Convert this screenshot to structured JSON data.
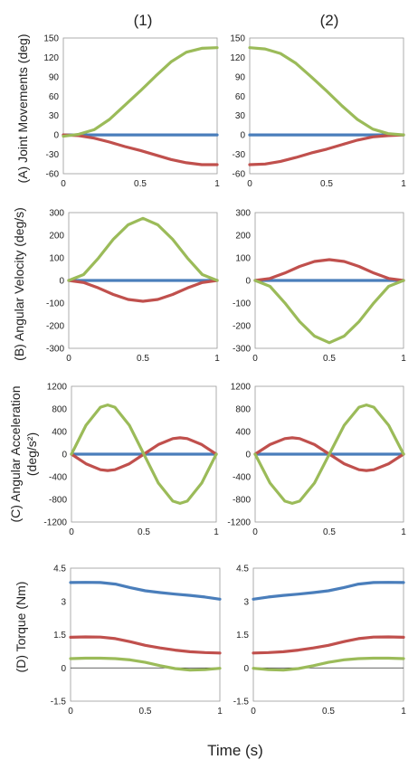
{
  "figure": {
    "column_titles": [
      "(1)",
      "(2)"
    ],
    "x_axis_title": "Time (s)",
    "row_labels": [
      [
        "(A) Joint Movements (deg)"
      ],
      [
        "(B) Angular Velocity (deg/s)"
      ],
      [
        "(C) Angular Acceleration",
        "(deg/s²)"
      ],
      [
        "(D) Torque (Nm)"
      ]
    ],
    "series_colors": [
      "#4a7ebb",
      "#c0504d",
      "#9bbb59"
    ]
  },
  "chart_data": [
    {
      "type": "line",
      "id": "A1",
      "xlim": [
        0,
        1
      ],
      "ylim": [
        -60,
        150
      ],
      "xticks": [
        0,
        0.5,
        1
      ],
      "yticks": [
        -60,
        -30,
        0,
        30,
        60,
        90,
        120,
        150
      ],
      "x": [
        0,
        0.1,
        0.2,
        0.3,
        0.4,
        0.5,
        0.6,
        0.7,
        0.8,
        0.9,
        1.0
      ],
      "series": [
        {
          "color": "#4a7ebb",
          "values": [
            0,
            0,
            0,
            0,
            0,
            0,
            0,
            0,
            0,
            0,
            0
          ]
        },
        {
          "color": "#c0504d",
          "values": [
            0,
            -1,
            -5,
            -11,
            -18,
            -24,
            -31,
            -38,
            -43,
            -46,
            -46
          ]
        },
        {
          "color": "#9bbb59",
          "values": [
            -2,
            1,
            8,
            24,
            46,
            68,
            91,
            113,
            128,
            134,
            135
          ]
        }
      ]
    },
    {
      "type": "line",
      "id": "A2",
      "xlim": [
        0,
        1
      ],
      "ylim": [
        -60,
        150
      ],
      "xticks": [
        0,
        0.5,
        1
      ],
      "yticks": [
        -60,
        -30,
        0,
        30,
        60,
        90,
        120,
        150
      ],
      "x": [
        0,
        0.1,
        0.2,
        0.3,
        0.4,
        0.5,
        0.6,
        0.7,
        0.8,
        0.9,
        1.0
      ],
      "series": [
        {
          "color": "#4a7ebb",
          "values": [
            0,
            0,
            0,
            0,
            0,
            0,
            0,
            0,
            0,
            0,
            0
          ]
        },
        {
          "color": "#c0504d",
          "values": [
            -46,
            -45,
            -41,
            -35,
            -28,
            -22,
            -15,
            -8,
            -3,
            -1,
            0
          ]
        },
        {
          "color": "#9bbb59",
          "values": [
            135,
            133,
            126,
            111,
            90,
            68,
            45,
            24,
            9,
            2,
            0
          ]
        }
      ]
    },
    {
      "type": "line",
      "id": "B1",
      "xlim": [
        0,
        1
      ],
      "ylim": [
        -300,
        300
      ],
      "xticks": [
        0,
        0.5,
        1
      ],
      "yticks": [
        -300,
        -200,
        -100,
        0,
        100,
        200,
        300
      ],
      "x": [
        0,
        0.1,
        0.2,
        0.3,
        0.4,
        0.5,
        0.6,
        0.7,
        0.8,
        0.9,
        1.0
      ],
      "series": [
        {
          "color": "#4a7ebb",
          "values": [
            0,
            0,
            0,
            0,
            0,
            0,
            0,
            0,
            0,
            0,
            0
          ]
        },
        {
          "color": "#c0504d",
          "values": [
            0,
            -9,
            -33,
            -62,
            -84,
            -92,
            -84,
            -62,
            -33,
            -9,
            0
          ]
        },
        {
          "color": "#9bbb59",
          "values": [
            0,
            26,
            99,
            182,
            246,
            275,
            246,
            182,
            99,
            26,
            0
          ]
        }
      ]
    },
    {
      "type": "line",
      "id": "B2",
      "xlim": [
        0,
        1
      ],
      "ylim": [
        -300,
        300
      ],
      "xticks": [
        0,
        0.5,
        1
      ],
      "yticks": [
        -300,
        -200,
        -100,
        0,
        100,
        200,
        300
      ],
      "x": [
        0,
        0.1,
        0.2,
        0.3,
        0.4,
        0.5,
        0.6,
        0.7,
        0.8,
        0.9,
        1.0
      ],
      "series": [
        {
          "color": "#4a7ebb",
          "values": [
            0,
            0,
            0,
            0,
            0,
            0,
            0,
            0,
            0,
            0,
            0
          ]
        },
        {
          "color": "#c0504d",
          "values": [
            0,
            9,
            33,
            62,
            84,
            92,
            84,
            62,
            33,
            9,
            0
          ]
        },
        {
          "color": "#9bbb59",
          "values": [
            0,
            -26,
            -99,
            -182,
            -246,
            -275,
            -246,
            -182,
            -99,
            -26,
            0
          ]
        }
      ]
    },
    {
      "type": "line",
      "id": "C1",
      "xlim": [
        0,
        1
      ],
      "ylim": [
        -1200,
        1200
      ],
      "xticks": [
        0,
        0.5,
        1
      ],
      "yticks": [
        -1200,
        -800,
        -400,
        0,
        400,
        800,
        1200
      ],
      "x": [
        0,
        0.1,
        0.2,
        0.25,
        0.3,
        0.4,
        0.5,
        0.6,
        0.7,
        0.75,
        0.8,
        0.9,
        1.0
      ],
      "series": [
        {
          "color": "#4a7ebb",
          "values": [
            0,
            0,
            0,
            0,
            0,
            0,
            0,
            0,
            0,
            0,
            0,
            0,
            0
          ]
        },
        {
          "color": "#c0504d",
          "values": [
            0,
            -170,
            -275,
            -290,
            -275,
            -170,
            0,
            170,
            275,
            290,
            275,
            170,
            0
          ]
        },
        {
          "color": "#9bbb59",
          "values": [
            0,
            510,
            830,
            870,
            830,
            510,
            0,
            -510,
            -830,
            -870,
            -830,
            -510,
            0
          ]
        }
      ]
    },
    {
      "type": "line",
      "id": "C2",
      "xlim": [
        0,
        1
      ],
      "ylim": [
        -1200,
        1200
      ],
      "xticks": [
        0,
        0.5,
        1
      ],
      "yticks": [
        -1200,
        -800,
        -400,
        0,
        400,
        800,
        1200
      ],
      "x": [
        0,
        0.1,
        0.2,
        0.25,
        0.3,
        0.4,
        0.5,
        0.6,
        0.7,
        0.75,
        0.8,
        0.9,
        1.0
      ],
      "series": [
        {
          "color": "#4a7ebb",
          "values": [
            0,
            0,
            0,
            0,
            0,
            0,
            0,
            0,
            0,
            0,
            0,
            0,
            0
          ]
        },
        {
          "color": "#c0504d",
          "values": [
            0,
            170,
            275,
            290,
            275,
            170,
            0,
            -170,
            -275,
            -290,
            -275,
            -170,
            0
          ]
        },
        {
          "color": "#9bbb59",
          "values": [
            0,
            -510,
            -830,
            -870,
            -830,
            -510,
            0,
            510,
            830,
            870,
            830,
            510,
            0
          ]
        }
      ]
    },
    {
      "type": "line",
      "id": "D1",
      "xlim": [
        0,
        1
      ],
      "ylim": [
        -1.5,
        4.5
      ],
      "xticks": [
        0,
        0.5,
        1
      ],
      "yticks": [
        -1.5,
        0,
        1.5,
        3,
        4.5
      ],
      "reference_line_y": 0,
      "x": [
        0,
        0.1,
        0.2,
        0.3,
        0.4,
        0.5,
        0.6,
        0.7,
        0.8,
        0.9,
        1.0
      ],
      "series": [
        {
          "color": "#4a7ebb",
          "values": [
            3.85,
            3.86,
            3.85,
            3.78,
            3.62,
            3.48,
            3.4,
            3.33,
            3.27,
            3.2,
            3.1
          ]
        },
        {
          "color": "#c0504d",
          "values": [
            1.38,
            1.4,
            1.39,
            1.32,
            1.18,
            1.02,
            0.9,
            0.8,
            0.73,
            0.69,
            0.67
          ]
        },
        {
          "color": "#9bbb59",
          "values": [
            0.42,
            0.44,
            0.44,
            0.42,
            0.36,
            0.25,
            0.1,
            -0.03,
            -0.1,
            -0.08,
            -0.02
          ]
        }
      ]
    },
    {
      "type": "line",
      "id": "D2",
      "xlim": [
        0,
        1
      ],
      "ylim": [
        -1.5,
        4.5
      ],
      "xticks": [
        0,
        0.5,
        1
      ],
      "yticks": [
        -1.5,
        0,
        1.5,
        3,
        4.5
      ],
      "reference_line_y": 0,
      "x": [
        0,
        0.1,
        0.2,
        0.3,
        0.4,
        0.5,
        0.6,
        0.7,
        0.8,
        0.9,
        1.0
      ],
      "series": [
        {
          "color": "#4a7ebb",
          "values": [
            3.1,
            3.2,
            3.27,
            3.33,
            3.4,
            3.48,
            3.62,
            3.78,
            3.85,
            3.86,
            3.85
          ]
        },
        {
          "color": "#c0504d",
          "values": [
            0.67,
            0.69,
            0.73,
            0.8,
            0.9,
            1.02,
            1.18,
            1.32,
            1.39,
            1.4,
            1.38
          ]
        },
        {
          "color": "#9bbb59",
          "values": [
            -0.02,
            -0.08,
            -0.1,
            -0.03,
            0.1,
            0.25,
            0.36,
            0.42,
            0.44,
            0.44,
            0.42
          ]
        }
      ]
    }
  ]
}
